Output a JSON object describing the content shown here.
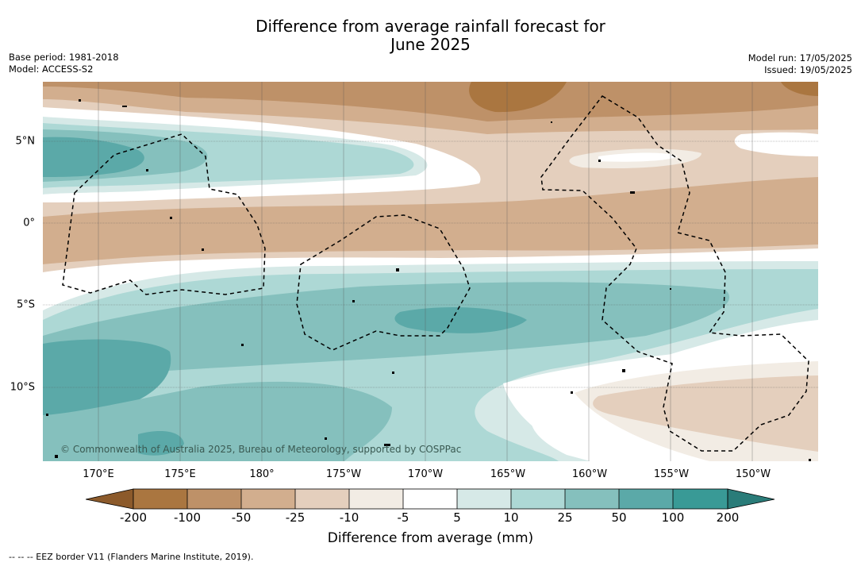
{
  "title_line1": "Difference from average rainfall forecast for",
  "title_line2": "June 2025",
  "meta_left": {
    "base_period": "Base period: 1981-2018",
    "model": "Model: ACCESS-S2"
  },
  "meta_right": {
    "model_run": "Model run: 17/05/2025",
    "issued": "Issued: 19/05/2025"
  },
  "lon_labels": [
    "170°E",
    "175°E",
    "180°",
    "175°W",
    "170°W",
    "165°W",
    "160°W",
    "155°W",
    "150°W"
  ],
  "lat_labels": [
    "5°N",
    "0°",
    "5°S",
    "10°S"
  ],
  "copyright": "© Commonwealth of Australia 2025, Bureau of Meteorology, supported by COSPPac",
  "colorbar": {
    "ticks": [
      "-200",
      "-100",
      "-50",
      "-25",
      "-10",
      "-5",
      "5",
      "10",
      "25",
      "50",
      "100",
      "200"
    ],
    "colors": [
      "#8c5a2b",
      "#aa7640",
      "#be9168",
      "#d2ae8e",
      "#e4cfbd",
      "#f2ece4",
      "#ffffff",
      "#d6e9e7",
      "#add8d5",
      "#85c0bd",
      "#5ba9a8",
      "#399a96",
      "#2a7c79"
    ],
    "label": "Difference from average (mm)"
  },
  "footer": "--  --  -- EEZ border V11 (Flanders Marine Institute, 2019)."
}
